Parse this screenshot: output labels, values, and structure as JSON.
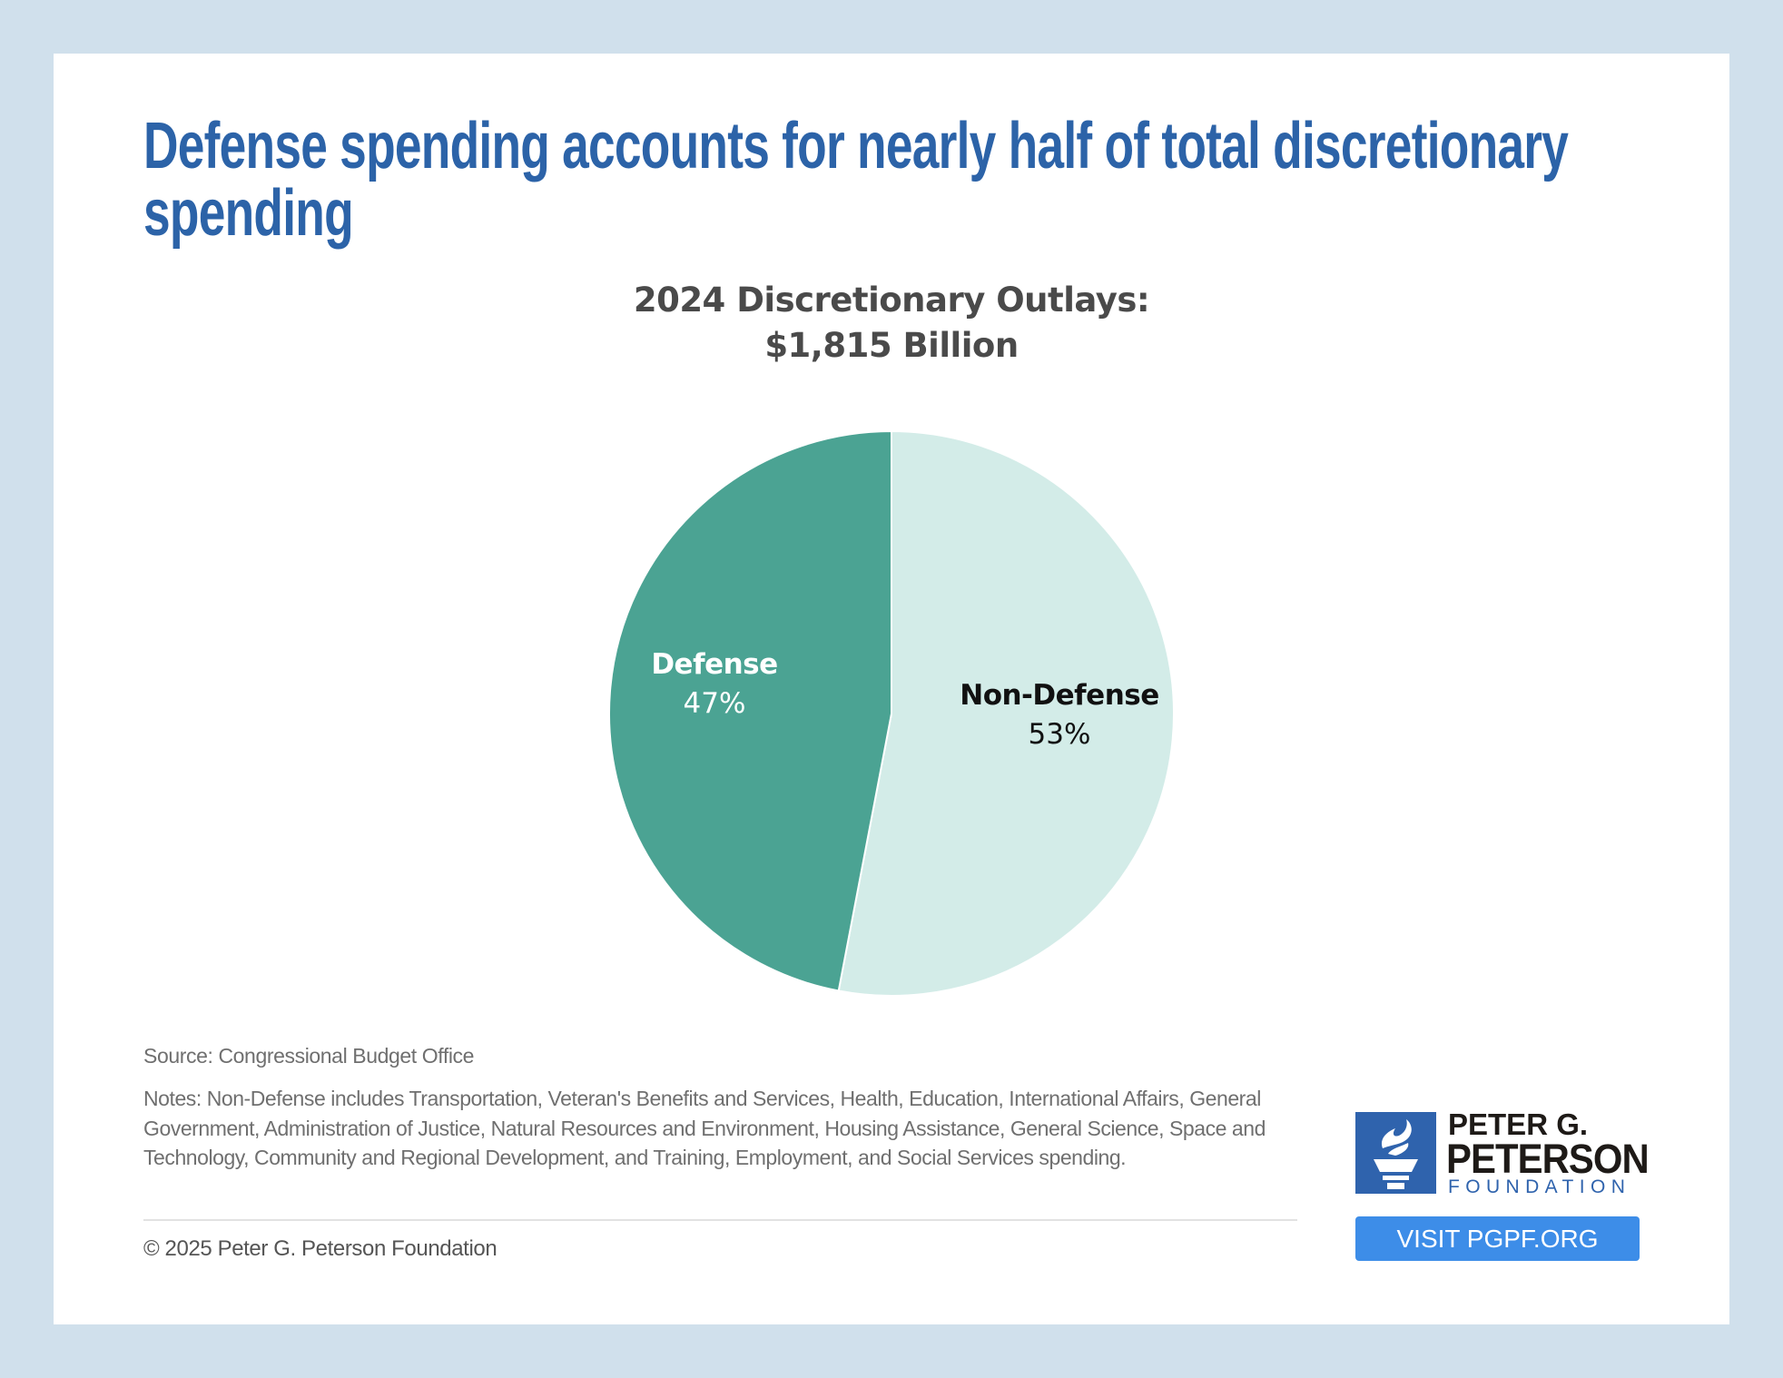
{
  "header": {
    "title": "Defense spending accounts for nearly half of total discretionary spending",
    "title_lines": [
      "Defense spending accounts for nearly half of total discretionary",
      "spending"
    ]
  },
  "chart_data": {
    "type": "pie",
    "title": "2024 Discretionary Outlays:",
    "subtitle": "$1,815 Billion",
    "total": 1815,
    "total_unit": "Billion USD",
    "slices": [
      {
        "label": "Non-Defense",
        "value": 53,
        "display": "53%",
        "color": "#d3ece8",
        "label_color": "#111111"
      },
      {
        "label": "Defense",
        "value": 47,
        "display": "47%",
        "color": "#4ba393",
        "label_color": "#ffffff"
      }
    ],
    "start": "12 o'clock",
    "direction": "clockwise",
    "legend": "none (inline labels)"
  },
  "footer": {
    "source": "Source: Congressional Budget Office",
    "notes": "Notes: Non-Defense includes Transportation, Veteran's Benefits and Services, Health, Education, International Affairs, General Government, Administration of Justice, Natural Resources and Environment, Housing Assistance, General Science, Space and Technology, Community and Regional Development, and Training, Employment, and Social Services spending.",
    "copyright": "© 2025 Peter G. Peterson Foundation"
  },
  "logo": {
    "line1": "PETER G.",
    "line2": "PETERSON",
    "line3": "FOUNDATION",
    "icon": "torch-icon",
    "brand_color": "#2f63ad"
  },
  "cta": {
    "label": "VISIT PGPF.ORG",
    "color": "#3d8de8"
  },
  "colors": {
    "page_background": "#d0e0ec",
    "title": "#2c63a8"
  }
}
